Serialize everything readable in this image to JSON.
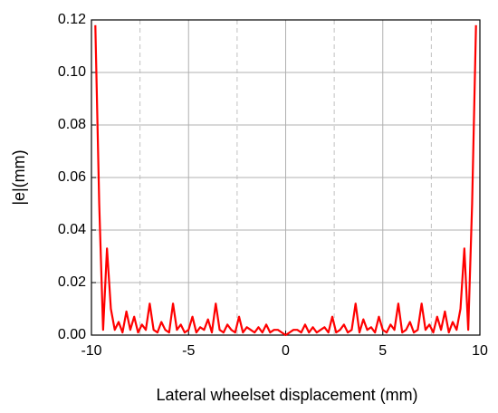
{
  "chart_data": {
    "type": "line",
    "xlabel": "Lateral wheelset displacement (mm)",
    "ylabel": "|e|(mm)",
    "color": "#ff0000",
    "x": [
      -9.8,
      -9.6,
      -9.4,
      -9.2,
      -9.0,
      -8.8,
      -8.6,
      -8.4,
      -8.2,
      -8.0,
      -7.8,
      -7.6,
      -7.4,
      -7.2,
      -7.0,
      -6.8,
      -6.6,
      -6.4,
      -6.2,
      -6.0,
      -5.8,
      -5.6,
      -5.4,
      -5.2,
      -5.0,
      -4.8,
      -4.6,
      -4.4,
      -4.2,
      -4.0,
      -3.8,
      -3.6,
      -3.4,
      -3.2,
      -3.0,
      -2.8,
      -2.6,
      -2.4,
      -2.2,
      -2.0,
      -1.8,
      -1.6,
      -1.4,
      -1.2,
      -1.0,
      -0.8,
      -0.6,
      -0.4,
      -0.2,
      0,
      0.2,
      0.4,
      0.6,
      0.8,
      1.0,
      1.2,
      1.4,
      1.6,
      1.8,
      2.0,
      2.2,
      2.4,
      2.6,
      2.8,
      3.0,
      3.2,
      3.4,
      3.6,
      3.8,
      4.0,
      4.2,
      4.4,
      4.6,
      4.8,
      5.0,
      5.2,
      5.4,
      5.6,
      5.8,
      6.0,
      6.2,
      6.4,
      6.6,
      6.8,
      7.0,
      7.2,
      7.4,
      7.6,
      7.8,
      8.0,
      8.2,
      8.4,
      8.6,
      8.8,
      9.0,
      9.2,
      9.4,
      9.6,
      9.8
    ],
    "values": [
      0.118,
      0.05,
      0.002,
      0.033,
      0.01,
      0.002,
      0.005,
      0.001,
      0.009,
      0.002,
      0.007,
      0.001,
      0.004,
      0.002,
      0.012,
      0.002,
      0.001,
      0.005,
      0.002,
      0.001,
      0.012,
      0.002,
      0.004,
      0.001,
      0.002,
      0.007,
      0.001,
      0.003,
      0.002,
      0.006,
      0.001,
      0.012,
      0.002,
      0.001,
      0.004,
      0.002,
      0.001,
      0.007,
      0.001,
      0.003,
      0.002,
      0.001,
      0.003,
      0.001,
      0.004,
      0.001,
      0.002,
      0.002,
      0.001,
      0,
      0.001,
      0.002,
      0.002,
      0.001,
      0.004,
      0.001,
      0.003,
      0.001,
      0.002,
      0.003,
      0.001,
      0.007,
      0.001,
      0.002,
      0.004,
      0.001,
      0.002,
      0.012,
      0.001,
      0.006,
      0.002,
      0.003,
      0.001,
      0.007,
      0.002,
      0.001,
      0.004,
      0.002,
      0.012,
      0.001,
      0.002,
      0.005,
      0.001,
      0.002,
      0.012,
      0.002,
      0.004,
      0.001,
      0.007,
      0.002,
      0.009,
      0.001,
      0.005,
      0.002,
      0.01,
      0.033,
      0.002,
      0.05,
      0.118
    ],
    "xlim": [
      -10,
      10
    ],
    "xticks": [
      -10,
      -5,
      0,
      5,
      10
    ],
    "xminorticks": [
      -7.5,
      -2.5,
      2.5,
      7.5
    ],
    "ylim": [
      0,
      0.12
    ],
    "yticks": [
      {
        "value": 0,
        "label": "0.00"
      },
      0.02,
      0.04,
      0.06,
      0.08,
      {
        "value": 0.1,
        "label": "0.10"
      },
      0.12
    ],
    "grid": true
  }
}
